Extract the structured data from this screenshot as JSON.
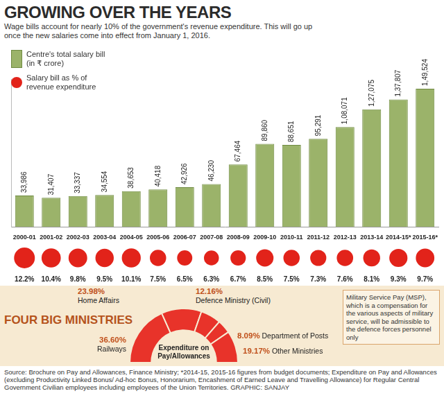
{
  "chart_data": [
    {
      "type": "bar",
      "title": "GROWING OVER THE YEARS",
      "subtitle": "Wage bills account for nearly 10% of the government's revenue expenditure. This will go up once the new salaries come into effect from January 1, 2016.",
      "categories": [
        "2000-01",
        "2001-02",
        "2002-03",
        "2003-04",
        "2004-05",
        "2005-06",
        "2006-07",
        "2007-08",
        "2008-09",
        "2009-10",
        "2010-11",
        "2011-12",
        "2012-13",
        "2013-14",
        "2014-15*",
        "2015-16*"
      ],
      "series": [
        {
          "name": "Centre's total salary bill (in ₹ crore)",
          "type": "bar",
          "color": "#9bb36a",
          "values": [
            33986,
            31407,
            33337,
            34554,
            38653,
            40418,
            42926,
            46230,
            67464,
            89860,
            88651,
            95291,
            108071,
            127075,
            137807,
            149524
          ],
          "value_labels": [
            "33,986",
            "31,407",
            "33,337",
            "34,554",
            "38,653",
            "40,418",
            "42,926",
            "46,230",
            "67,464",
            "89,860",
            "88,651",
            "95,291",
            "1,08,071",
            "1,27,075",
            "1,37,807",
            "1,49,524"
          ]
        },
        {
          "name": "Salary bill as % of revenue expenditure",
          "type": "bubble",
          "marker": "circle",
          "color": "#e2231a",
          "values": [
            12.2,
            10.4,
            9.8,
            9.5,
            10.1,
            7.5,
            6.5,
            6.3,
            6.7,
            8.5,
            7.5,
            7.3,
            7.6,
            8.1,
            9.3,
            9.7
          ],
          "value_labels": [
            "12.2%",
            "10.4%",
            "9.8%",
            "9.5%",
            "10.1%",
            "7.5%",
            "6.5%",
            "6.3%",
            "6.7%",
            "8.5%",
            "7.5%",
            "7.3%",
            "7.6%",
            "8.1%",
            "9.3%",
            "9.7%"
          ]
        }
      ],
      "ylim": [
        0,
        160000
      ],
      "grid": false,
      "legend": "top-left",
      "data_labels": true,
      "tick_labels": "x"
    },
    {
      "type": "doughnut",
      "title": "FOUR BIG MINISTRIES",
      "categories": [
        "Railways",
        "Home Affairs",
        "Defence Ministry (Civil)",
        "Department of Posts",
        "Other Ministries"
      ],
      "values": [
        36.6,
        23.98,
        12.16,
        8.09,
        19.17
      ],
      "value_labels": [
        "36.60%",
        "23.98%",
        "12.16%",
        "8.09%",
        "19.17%"
      ],
      "color": "#e8332a",
      "data_labels": true,
      "annotations": [
        "Expenditure on Pay/Allowances",
        "Military Service Pay (MSP), which is a compensation for the various aspects of military service, will be admissible to the defence forces personnel only"
      ]
    }
  ],
  "source": "Source: Brochure on Pay and Allowances, Finance Ministry; *2014-15, 2015-16 figures from budget documents; Expenditure on Pay and Allowances (excluding Productivity Linked Bonus/ Ad-hoc Bonus, Honorarium, Encashment of Earned Leave and Travelling Allowance) for Regular Central Government Civilian employees including employees of the Union Territories. GRAPHIC: SANJAY"
}
